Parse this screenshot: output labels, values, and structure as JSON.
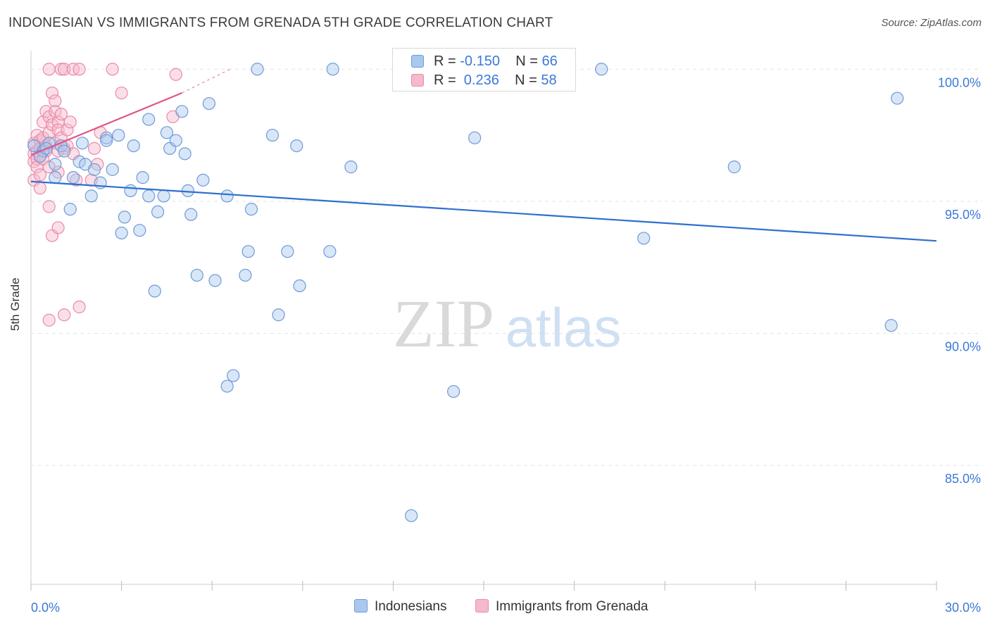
{
  "title": "INDONESIAN VS IMMIGRANTS FROM GRENADA 5TH GRADE CORRELATION CHART",
  "source": "Source: ZipAtlas.com",
  "watermark": {
    "zip": "ZIP",
    "atlas": "atlas"
  },
  "legend": {
    "series1": {
      "r_label": "R = ",
      "r": "-0.150",
      "n_label": "N = ",
      "n": "66"
    },
    "series2": {
      "r_label": "R = ",
      "r": " 0.236",
      "n_label": "N = ",
      "n": "58"
    }
  },
  "bottom_legend": {
    "series1": "Indonesians",
    "series2": "Immigrants from Grenada"
  },
  "colors": {
    "series1_fill": "#a9c8ee",
    "series1_stroke": "#6e9bd8",
    "series1_line": "#2e6fcf",
    "series2_fill": "#f6b9cc",
    "series2_stroke": "#e98aa8",
    "series2_line": "#e05588",
    "axis_text": "#3b78d8",
    "grid": "#e4e4e4"
  },
  "chart_data": {
    "type": "scatter",
    "title": "INDONESIAN VS IMMIGRANTS FROM GRENADA 5TH GRADE CORRELATION CHART",
    "xlabel": "",
    "ylabel": "5th Grade",
    "xlim": [
      0,
      30
    ],
    "ylim": [
      80.5,
      100.7
    ],
    "x_tick_labels": [
      "0.0%",
      "30.0%"
    ],
    "y_ticks": [
      85,
      90,
      95,
      100
    ],
    "y_tick_labels": [
      "85.0%",
      "90.0%",
      "95.0%",
      "100.0%"
    ],
    "grid": true,
    "legend_position": "top-center",
    "series": [
      {
        "name": "Indonesians",
        "points": [
          [
            0.1,
            97.1
          ],
          [
            0.4,
            96.9
          ],
          [
            0.6,
            97.2
          ],
          [
            0.8,
            96.4
          ],
          [
            0.8,
            95.9
          ],
          [
            1.0,
            97.1
          ],
          [
            1.3,
            94.7
          ],
          [
            1.4,
            95.9
          ],
          [
            1.7,
            97.2
          ],
          [
            1.6,
            96.5
          ],
          [
            1.8,
            96.4
          ],
          [
            2.0,
            95.2
          ],
          [
            2.1,
            96.2
          ],
          [
            2.3,
            95.7
          ],
          [
            2.5,
            97.4
          ],
          [
            2.5,
            97.3
          ],
          [
            2.7,
            96.2
          ],
          [
            2.9,
            97.5
          ],
          [
            3.0,
            93.8
          ],
          [
            3.1,
            94.4
          ],
          [
            3.3,
            95.4
          ],
          [
            3.4,
            97.1
          ],
          [
            3.6,
            93.9
          ],
          [
            3.7,
            95.9
          ],
          [
            3.9,
            95.2
          ],
          [
            3.9,
            98.1
          ],
          [
            4.1,
            91.6
          ],
          [
            4.2,
            94.6
          ],
          [
            4.4,
            95.2
          ],
          [
            4.5,
            97.6
          ],
          [
            4.6,
            97.0
          ],
          [
            4.8,
            97.3
          ],
          [
            5.0,
            98.4
          ],
          [
            5.1,
            96.8
          ],
          [
            5.2,
            95.4
          ],
          [
            5.3,
            94.5
          ],
          [
            5.5,
            92.2
          ],
          [
            5.7,
            95.8
          ],
          [
            5.9,
            98.7
          ],
          [
            6.1,
            92.0
          ],
          [
            6.5,
            88.0
          ],
          [
            6.5,
            95.2
          ],
          [
            6.7,
            88.4
          ],
          [
            7.1,
            92.2
          ],
          [
            7.2,
            93.1
          ],
          [
            7.3,
            94.7
          ],
          [
            7.5,
            100.0
          ],
          [
            8.0,
            97.5
          ],
          [
            8.2,
            90.7
          ],
          [
            8.5,
            93.1
          ],
          [
            8.8,
            97.1
          ],
          [
            8.9,
            91.8
          ],
          [
            9.9,
            93.1
          ],
          [
            10.0,
            100.0
          ],
          [
            10.6,
            96.3
          ],
          [
            12.6,
            83.1
          ],
          [
            14.0,
            87.8
          ],
          [
            14.7,
            97.4
          ],
          [
            18.9,
            100.0
          ],
          [
            20.3,
            93.6
          ],
          [
            23.3,
            96.3
          ],
          [
            28.5,
            90.3
          ],
          [
            28.7,
            98.9
          ],
          [
            0.3,
            96.7
          ],
          [
            0.5,
            97.0
          ],
          [
            1.1,
            96.9
          ]
        ],
        "trendline": [
          [
            0,
            95.75
          ],
          [
            30,
            93.5
          ]
        ]
      },
      {
        "name": "Immigrants from Grenada",
        "points": [
          [
            0.1,
            97.2
          ],
          [
            0.1,
            96.8
          ],
          [
            0.1,
            96.5
          ],
          [
            0.1,
            95.8
          ],
          [
            0.2,
            97.5
          ],
          [
            0.2,
            96.9
          ],
          [
            0.2,
            96.6
          ],
          [
            0.2,
            96.3
          ],
          [
            0.3,
            97.3
          ],
          [
            0.3,
            97.0
          ],
          [
            0.3,
            96.7
          ],
          [
            0.3,
            95.5
          ],
          [
            0.3,
            96.0
          ],
          [
            0.4,
            98.0
          ],
          [
            0.4,
            97.4
          ],
          [
            0.4,
            96.6
          ],
          [
            0.5,
            98.4
          ],
          [
            0.5,
            97.1
          ],
          [
            0.5,
            96.9
          ],
          [
            0.6,
            98.2
          ],
          [
            0.6,
            97.6
          ],
          [
            0.6,
            96.3
          ],
          [
            0.6,
            94.8
          ],
          [
            0.6,
            90.5
          ],
          [
            0.7,
            99.1
          ],
          [
            0.7,
            97.9
          ],
          [
            0.7,
            93.7
          ],
          [
            0.8,
            98.8
          ],
          [
            0.8,
            98.4
          ],
          [
            0.8,
            97.2
          ],
          [
            0.9,
            98.0
          ],
          [
            0.9,
            97.7
          ],
          [
            0.9,
            96.9
          ],
          [
            0.9,
            96.1
          ],
          [
            0.9,
            94.0
          ],
          [
            1.0,
            98.3
          ],
          [
            1.0,
            97.4
          ],
          [
            1.1,
            97.0
          ],
          [
            1.1,
            90.7
          ],
          [
            1.2,
            97.7
          ],
          [
            1.2,
            97.1
          ],
          [
            1.3,
            98.0
          ],
          [
            1.4,
            96.8
          ],
          [
            1.5,
            95.8
          ],
          [
            1.6,
            91.0
          ],
          [
            2.0,
            95.8
          ],
          [
            2.1,
            97.0
          ],
          [
            2.2,
            96.4
          ],
          [
            2.3,
            97.6
          ],
          [
            3.0,
            99.1
          ],
          [
            4.7,
            98.2
          ],
          [
            4.8,
            99.8
          ],
          [
            0.6,
            100.0
          ],
          [
            1.0,
            100.0
          ],
          [
            1.1,
            100.0
          ],
          [
            1.4,
            100.0
          ],
          [
            1.6,
            100.0
          ],
          [
            2.7,
            100.0
          ]
        ],
        "trendline": [
          [
            0,
            96.75
          ],
          [
            5.0,
            99.1
          ]
        ],
        "trendline_extension": [
          [
            5.0,
            99.1
          ],
          [
            6.6,
            100.0
          ]
        ]
      }
    ]
  }
}
